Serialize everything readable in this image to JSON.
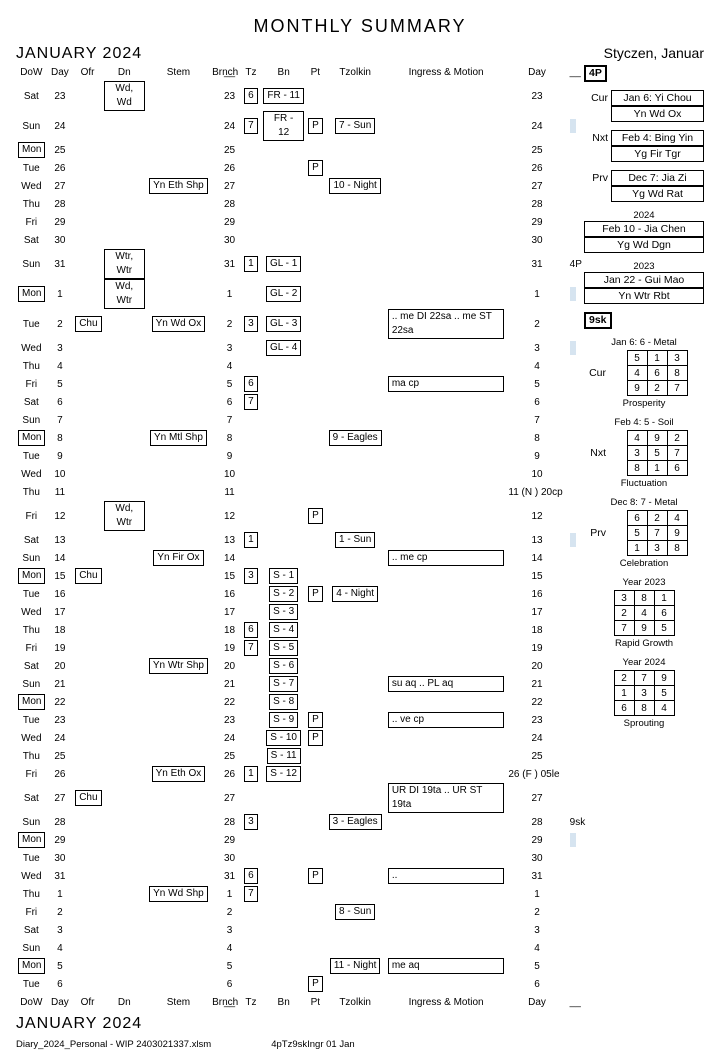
{
  "title": "MONTHLY   SUMMARY",
  "month_left": "JANUARY   2024",
  "month_right": "Styczen, Januar",
  "footer_file": "Diary_2024_Personal - WIP 2403021337.xlsm",
  "footer_code": "4pTz9skIngr 01 Jan",
  "headers": [
    "DoW",
    "Day",
    "Ofr",
    "Dn",
    "Stem",
    "Brnch",
    "__",
    "Tz",
    "Bn",
    "Pt",
    "Tzolkin",
    "Ingress & Motion",
    "Day",
    "__"
  ],
  "side_4p": "4P",
  "side_9sk": "9sk",
  "side_pillars_cur": {
    "lbl": "Cur",
    "a": "Jan 6: Yi Chou",
    "b": "Yn Wd Ox"
  },
  "side_pillars_nxt": {
    "lbl": "Nxt",
    "a": "Feb 4: Bing Yin",
    "b": "Yg Fir Tgr"
  },
  "side_pillars_prv": {
    "lbl": "Prv",
    "a": "Dec 7: Jia Zi",
    "b": "Yg Wd Rat"
  },
  "side_year1": {
    "title": "2024",
    "a": "Feb 10 - Jia Chen",
    "b": "Yg Wd Dgn"
  },
  "side_year2": {
    "title": "2023",
    "a": "Jan 22 - Gui Mao",
    "b": "Yn Wtr Rbt"
  },
  "grids": [
    {
      "title": "Jan 6:  6 - Metal",
      "lbl": "Cur",
      "cells": [
        [
          5,
          1,
          3
        ],
        [
          4,
          6,
          8
        ],
        [
          9,
          2,
          7
        ]
      ],
      "cap": "Prosperity"
    },
    {
      "title": "Feb 4:  5 - Soil",
      "lbl": "Nxt",
      "cells": [
        [
          4,
          9,
          2
        ],
        [
          3,
          5,
          7
        ],
        [
          8,
          1,
          6
        ]
      ],
      "cap": "Fluctuation"
    },
    {
      "title": "Dec 8:  7 - Metal",
      "lbl": "Prv",
      "cells": [
        [
          6,
          2,
          4
        ],
        [
          5,
          7,
          9
        ],
        [
          1,
          3,
          8
        ]
      ],
      "cap": "Celebration"
    },
    {
      "title": "Year   2023",
      "lbl": "",
      "cells": [
        [
          3,
          8,
          1
        ],
        [
          2,
          4,
          6
        ],
        [
          7,
          9,
          5
        ]
      ],
      "cap": "Rapid Growth"
    },
    {
      "title": "Year   2024",
      "lbl": "",
      "cells": [
        [
          2,
          7,
          9
        ],
        [
          1,
          3,
          5
        ],
        [
          6,
          8,
          4
        ]
      ],
      "cap": "Sprouting"
    }
  ],
  "rows": [
    {
      "dow": "Sat",
      "day": "23",
      "dn": "Wd, Wd",
      "u": "23",
      "tz": "6",
      "bn": "FR - 11",
      "dayR": "23"
    },
    {
      "dow": "Sun",
      "day": "24",
      "u": "24",
      "tz": "7",
      "bn": "FR - 12",
      "pt": "P",
      "tzk": "7 - Sun",
      "dayR": "24",
      "blue": true
    },
    {
      "dow": "Mon",
      "day": "25",
      "monBox": true,
      "u": "25",
      "dayR": "25"
    },
    {
      "dow": "Tue",
      "day": "26",
      "u": "26",
      "pt": "P",
      "dayR": "26"
    },
    {
      "dow": "Wed",
      "day": "27",
      "stem": "Yn Eth Shp",
      "u": "27",
      "tzk": "10 - Night",
      "dayR": "27"
    },
    {
      "dow": "Thu",
      "day": "28",
      "u": "28",
      "dayR": "28"
    },
    {
      "dow": "Fri",
      "day": "29",
      "u": "29",
      "dayR": "29"
    },
    {
      "dow": "Sat",
      "day": "30",
      "u": "30",
      "dayR": "30"
    },
    {
      "dow": "Sun",
      "day": "31",
      "dn": "Wtr, Wtr",
      "u": "31",
      "tz": "1",
      "bn": "GL - 1",
      "dayR": "31",
      "extraR": "4P"
    },
    {
      "dow": "Mon",
      "day": "1",
      "monBox": true,
      "dn": "Wd, Wtr",
      "u": "1",
      "bn": "GL - 2",
      "dayR": "1",
      "blue": true
    },
    {
      "dow": "Tue",
      "day": "2",
      "ofr": "Chu",
      "stem": "Yn Wd Ox",
      "u": "2",
      "tz": "3",
      "bn": "GL - 3",
      "ing": ".. me DI 22sa .. me ST 22sa",
      "dayR": "2"
    },
    {
      "dow": "Wed",
      "day": "3",
      "u": "3",
      "bn": "GL - 4",
      "dayR": "3",
      "blue": true
    },
    {
      "dow": "Thu",
      "day": "4",
      "u": "4",
      "dayR": "4"
    },
    {
      "dow": "Fri",
      "day": "5",
      "u": "5",
      "tz": "6",
      "ing": "ma cp",
      "dayR": "5"
    },
    {
      "dow": "Sat",
      "day": "6",
      "u": "6",
      "tz": "7",
      "dayR": "6"
    },
    {
      "dow": "Sun",
      "day": "7",
      "u": "7",
      "dayR": "7"
    },
    {
      "dow": "Mon",
      "day": "8",
      "monBox": true,
      "stem": "Yn Mtl Shp",
      "u": "8",
      "tzk": "9 - Eagles",
      "dayR": "8"
    },
    {
      "dow": "Tue",
      "day": "9",
      "u": "9",
      "dayR": "9"
    },
    {
      "dow": "Wed",
      "day": "10",
      "u": "10",
      "dayR": "10"
    },
    {
      "dow": "Thu",
      "day": "11",
      "u": "11",
      "dayR": "11 (N ) 20cp"
    },
    {
      "dow": "Fri",
      "day": "12",
      "dn": "Wd, Wtr",
      "u": "12",
      "pt": "P",
      "dayR": "12"
    },
    {
      "dow": "Sat",
      "day": "13",
      "u": "13",
      "tz": "1",
      "tzk": "1 - Sun",
      "dayR": "13",
      "blue": true
    },
    {
      "dow": "Sun",
      "day": "14",
      "stem": "Yn Fir Ox",
      "u": "14",
      "ing": ".. me cp",
      "dayR": "14"
    },
    {
      "dow": "Mon",
      "day": "15",
      "monBox": true,
      "ofr": "Chu",
      "u": "15",
      "tz": "3",
      "bn": "S - 1",
      "dayR": "15"
    },
    {
      "dow": "Tue",
      "day": "16",
      "u": "16",
      "bn": "S - 2",
      "pt": "P",
      "tzk": "4 - Night",
      "dayR": "16"
    },
    {
      "dow": "Wed",
      "day": "17",
      "u": "17",
      "bn": "S - 3",
      "dayR": "17"
    },
    {
      "dow": "Thu",
      "day": "18",
      "u": "18",
      "tz": "6",
      "bn": "S - 4",
      "dayR": "18"
    },
    {
      "dow": "Fri",
      "day": "19",
      "u": "19",
      "tz": "7",
      "bn": "S - 5",
      "dayR": "19"
    },
    {
      "dow": "Sat",
      "day": "20",
      "stem": "Yn Wtr Shp",
      "u": "20",
      "bn": "S - 6",
      "dayR": "20"
    },
    {
      "dow": "Sun",
      "day": "21",
      "u": "21",
      "bn": "S - 7",
      "ing": "su aq .. PL aq",
      "dayR": "21"
    },
    {
      "dow": "Mon",
      "day": "22",
      "monBox": true,
      "u": "22",
      "bn": "S - 8",
      "dayR": "22"
    },
    {
      "dow": "Tue",
      "day": "23",
      "u": "23",
      "bn": "S - 9",
      "pt": "P",
      "ing": ".. ve cp",
      "dayR": "23"
    },
    {
      "dow": "Wed",
      "day": "24",
      "u": "24",
      "bn": "S - 10",
      "pt": "P",
      "dayR": "24"
    },
    {
      "dow": "Thu",
      "day": "25",
      "u": "25",
      "bn": "S - 11",
      "dayR": "25"
    },
    {
      "dow": "Fri",
      "day": "26",
      "stem": "Yn Eth Ox",
      "u": "26",
      "tz": "1",
      "bn": "S - 12",
      "dayR": "26 (F ) 05le"
    },
    {
      "dow": "Sat",
      "day": "27",
      "ofr": "Chu",
      "u": "27",
      "ing": "UR DI 19ta .. UR ST 19ta",
      "dayR": "27"
    },
    {
      "dow": "Sun",
      "day": "28",
      "u": "28",
      "tz": "3",
      "tzk": "3 - Eagles",
      "dayR": "28",
      "extraR": "9sk"
    },
    {
      "dow": "Mon",
      "day": "29",
      "monBox": true,
      "u": "29",
      "dayR": "29",
      "blue": true
    },
    {
      "dow": "Tue",
      "day": "30",
      "u": "30",
      "dayR": "30"
    },
    {
      "dow": "Wed",
      "day": "31",
      "u": "31",
      "tz": "6",
      "pt": "P",
      "ing": "..",
      "dayR": "31"
    },
    {
      "dow": "Thu",
      "day": "1",
      "stem": "Yn Wd Shp",
      "u": "1",
      "tz": "7",
      "dayR": "1"
    },
    {
      "dow": "Fri",
      "day": "2",
      "u": "2",
      "tzk": "8 - Sun",
      "dayR": "2"
    },
    {
      "dow": "Sat",
      "day": "3",
      "u": "3",
      "dayR": "3"
    },
    {
      "dow": "Sun",
      "day": "4",
      "u": "4",
      "dayR": "4"
    },
    {
      "dow": "Mon",
      "day": "5",
      "monBox": true,
      "u": "5",
      "tzk": "11 - Night",
      "ing": "me aq",
      "dayR": "5"
    },
    {
      "dow": "Tue",
      "day": "6",
      "u": "6",
      "pt": "P",
      "dayR": "6"
    }
  ]
}
